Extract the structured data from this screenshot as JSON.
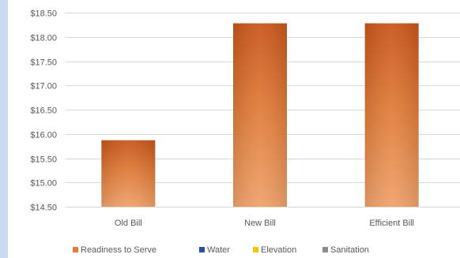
{
  "chart_data": {
    "type": "bar",
    "categories": [
      "Old Bill",
      "New Bill",
      "Efficient Bill"
    ],
    "series": [
      {
        "name": "Readiness to Serve",
        "values": [
          15.87,
          18.28,
          18.28
        ]
      },
      {
        "name": "Water",
        "values": [
          0,
          0,
          0
        ]
      },
      {
        "name": "Elevation",
        "values": [
          0,
          0,
          0
        ]
      },
      {
        "name": "Sanitation",
        "values": [
          0,
          0,
          0
        ]
      }
    ],
    "ylim": [
      14.5,
      18.5
    ],
    "yticks": [
      14.5,
      15.0,
      15.5,
      16.0,
      16.5,
      17.0,
      17.5,
      18.0,
      18.5
    ],
    "ytick_labels": [
      "$14.50",
      "$15.00",
      "$15.50",
      "$16.00",
      "$16.50",
      "$17.00",
      "$17.50",
      "$18.00",
      "$18.50"
    ],
    "grid": true,
    "legend_position": "bottom",
    "colors": {
      "Readiness to Serve": "#e07b39",
      "Water": "#2e4fa3",
      "Elevation": "#f2c500",
      "Sanitation": "#8c8c8c"
    }
  }
}
